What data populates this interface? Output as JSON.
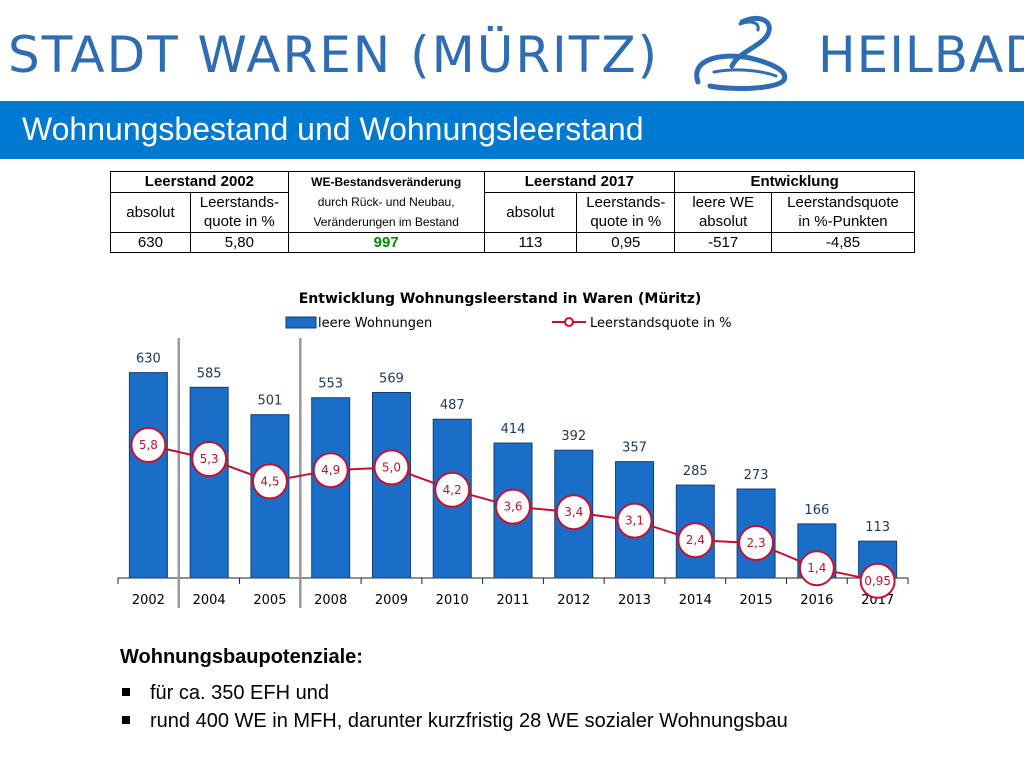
{
  "brand": {
    "left": "STADT WAREN (MÜRITZ)",
    "right": "HEILBAD",
    "color": "#2e6db3"
  },
  "title": "Wohnungsbestand und Wohnungsleerstand",
  "summary_table": {
    "group_2002": "Leerstand 2002",
    "change_header": [
      "WE-Bestandsveränderung",
      "durch Rück- und Neubau,",
      "Veränderungen im Bestand"
    ],
    "group_2017": "Leerstand 2017",
    "group_dev": "Entwicklung",
    "sub_absolut_2002": "absolut",
    "sub_quote_2002": [
      "Leerstands-",
      "quote in %"
    ],
    "sub_absolut_2017": "absolut",
    "sub_quote_2017": [
      "Leerstands-",
      "quote in %"
    ],
    "sub_leere_we": [
      "leere WE",
      "absolut"
    ],
    "sub_quote_pp": [
      "Leerstandsquote",
      "in %-Punkten"
    ],
    "values": [
      "630",
      "5,80",
      "997",
      "113",
      "0,95",
      "-517",
      "-4,85"
    ]
  },
  "chart_data": {
    "type": "bar",
    "title": "Entwicklung Wohnungsleerstand in Waren (Müritz)",
    "categories": [
      "2002",
      "2004",
      "2005",
      "2008",
      "2009",
      "2010",
      "2011",
      "2012",
      "2013",
      "2014",
      "2015",
      "2016",
      "2017"
    ],
    "series": [
      {
        "name": "leere Wohnungen",
        "kind": "bar",
        "color": "#1a6ec8",
        "values": [
          630,
          585,
          501,
          553,
          569,
          487,
          414,
          392,
          357,
          285,
          273,
          166,
          113
        ],
        "labels": [
          "630",
          "585",
          "501",
          "553",
          "569",
          "487",
          "414",
          "392",
          "357",
          "285",
          "273",
          "166",
          "113"
        ]
      },
      {
        "name": "Leerstandsquote in %",
        "kind": "line",
        "color": "#c8102e",
        "values": [
          5.8,
          5.3,
          4.5,
          4.9,
          5.0,
          4.2,
          3.6,
          3.4,
          3.1,
          2.4,
          2.3,
          1.4,
          0.95
        ],
        "labels": [
          "5,8",
          "5,3",
          "4,5",
          "4,9",
          "5,0",
          "4,2",
          "3,6",
          "3,4",
          "3,1",
          "2,4",
          "2,3",
          "1,4",
          "0,95"
        ]
      }
    ],
    "separator_after_categories": [
      "2002",
      "2005"
    ],
    "xlabel": "",
    "ylabel": ""
  },
  "potential": {
    "heading": "Wohnungsbaupotenziale:",
    "items": [
      "für  ca. 350 EFH und",
      "rund 400 WE in MFH, darunter kurzfristig 28 WE sozialer Wohnungsbau"
    ]
  }
}
